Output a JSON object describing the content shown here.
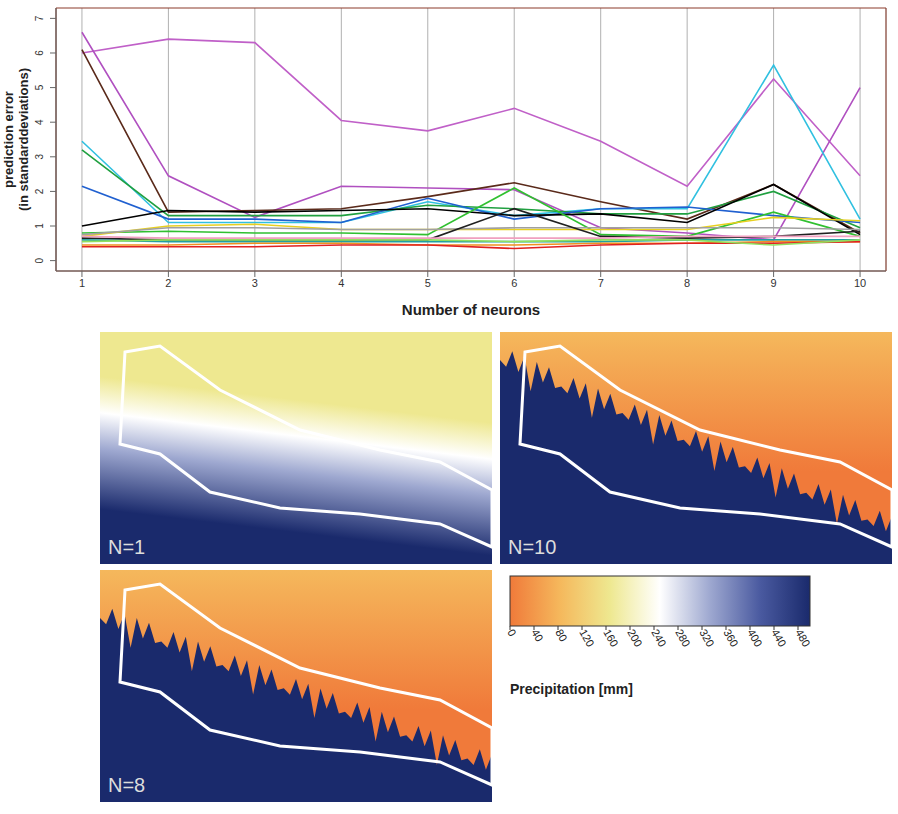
{
  "chart_data": [
    {
      "type": "line",
      "xlabel": "Number of neurons",
      "ylabel": [
        "prediction error",
        "(in standarddeviations)"
      ],
      "x": [
        1,
        2,
        3,
        4,
        5,
        6,
        7,
        8,
        9,
        10
      ],
      "xlim": [
        0.7,
        10.3
      ],
      "xticks": [
        1,
        2,
        3,
        4,
        5,
        6,
        7,
        8,
        9,
        10
      ],
      "ylim": [
        -0.3,
        7.3
      ],
      "yticks": [
        0,
        1,
        2,
        3,
        4,
        5,
        6,
        7
      ],
      "grid": "x",
      "series": [
        {
          "color": "#c060c8",
          "values": [
            6.0,
            6.4,
            6.3,
            4.05,
            3.75,
            4.4,
            3.45,
            2.15,
            5.25,
            2.45
          ]
        },
        {
          "color": "#b050c0",
          "values": [
            6.6,
            2.45,
            1.25,
            2.15,
            2.1,
            2.05,
            0.95,
            0.8,
            0.6,
            5.0
          ]
        },
        {
          "color": "#5a2a1a",
          "values": [
            6.1,
            1.4,
            1.45,
            1.5,
            1.85,
            2.25,
            1.7,
            1.2,
            2.2,
            0.8
          ]
        },
        {
          "color": "#30c0e0",
          "values": [
            3.45,
            1.1,
            1.1,
            1.1,
            1.7,
            1.3,
            1.5,
            1.5,
            5.65,
            1.2
          ]
        },
        {
          "color": "#20a040",
          "values": [
            3.2,
            1.3,
            1.3,
            1.3,
            1.6,
            1.5,
            1.35,
            1.35,
            2.0,
            0.95
          ]
        },
        {
          "color": "#2060d0",
          "values": [
            2.15,
            1.2,
            1.2,
            1.1,
            1.8,
            1.2,
            1.5,
            1.55,
            1.3,
            1.1
          ]
        },
        {
          "color": "#000000",
          "values": [
            1.0,
            1.45,
            1.4,
            1.45,
            1.5,
            1.3,
            1.35,
            1.1,
            2.2,
            0.75
          ]
        },
        {
          "color": "#30c030",
          "values": [
            0.8,
            0.85,
            0.8,
            0.8,
            0.75,
            2.1,
            0.75,
            0.7,
            1.4,
            0.7
          ]
        },
        {
          "color": "#e8d020",
          "values": [
            0.7,
            1.0,
            1.05,
            0.9,
            0.9,
            0.9,
            0.9,
            0.9,
            1.25,
            1.15
          ]
        },
        {
          "color": "#a0a0a0",
          "values": [
            0.75,
            0.95,
            0.95,
            0.9,
            0.9,
            0.95,
            0.95,
            0.95,
            0.95,
            0.9
          ]
        },
        {
          "color": "#202020",
          "values": [
            0.65,
            0.6,
            0.6,
            0.6,
            0.6,
            1.5,
            0.7,
            0.65,
            0.7,
            0.85
          ]
        },
        {
          "color": "#20a0a0",
          "values": [
            0.6,
            0.55,
            0.55,
            0.55,
            0.55,
            0.55,
            0.55,
            0.6,
            0.6,
            0.6
          ]
        },
        {
          "color": "#f09020",
          "values": [
            0.45,
            0.45,
            0.5,
            0.5,
            0.45,
            0.45,
            0.5,
            0.5,
            0.55,
            0.55
          ]
        },
        {
          "color": "#e02020",
          "values": [
            0.4,
            0.4,
            0.4,
            0.45,
            0.45,
            0.35,
            0.45,
            0.5,
            0.5,
            0.55
          ]
        },
        {
          "color": "#90e060",
          "values": [
            0.55,
            0.6,
            0.6,
            0.6,
            0.6,
            0.55,
            0.6,
            0.6,
            0.45,
            0.6
          ]
        },
        {
          "color": "#f0a0c0",
          "values": [
            0.7,
            0.65,
            0.65,
            0.65,
            0.65,
            0.65,
            0.65,
            0.7,
            0.7,
            0.7
          ]
        }
      ]
    },
    {
      "type": "map",
      "panels": [
        {
          "label": "N=1"
        },
        {
          "label": "N=10"
        },
        {
          "label": "N=8"
        }
      ],
      "colorbar": {
        "label": "Precipitation [mm]",
        "range": [
          0,
          500
        ],
        "ticks": [
          0,
          40,
          80,
          120,
          160,
          200,
          240,
          280,
          320,
          360,
          400,
          440,
          480
        ],
        "colors": [
          "#f07a3a",
          "#f5b85c",
          "#eee890",
          "#ffffff",
          "#9ea8d0",
          "#4a5aa0",
          "#1a2a6c"
        ]
      }
    }
  ]
}
